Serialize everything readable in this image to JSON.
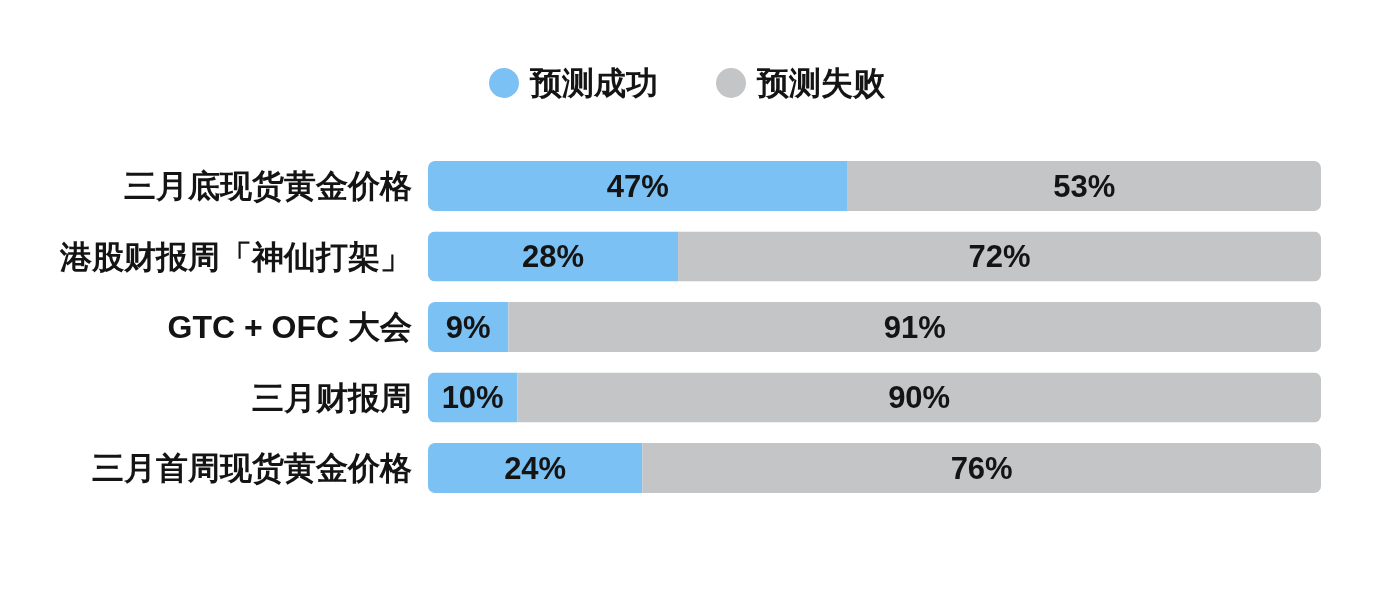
{
  "chart_data": {
    "type": "bar",
    "orientation": "horizontal",
    "stacked": true,
    "categories": [
      "三月底现货黄金价格",
      "港股财报周「神仙打架」",
      "GTC + OFC 大会",
      "三月财报周",
      "三月首周现货黄金价格"
    ],
    "series": [
      {
        "name": "预测成功",
        "color": "#7cc1f3",
        "values": [
          47,
          28,
          9,
          10,
          24
        ],
        "value_labels": [
          "47%",
          "28%",
          "9%",
          "10%",
          "24%"
        ]
      },
      {
        "name": "预测失败",
        "color": "#c4c5c7",
        "values": [
          53,
          72,
          91,
          90,
          76
        ],
        "value_labels": [
          "53%",
          "72%",
          "91%",
          "90%",
          "76%"
        ]
      }
    ],
    "xlim": [
      0,
      100
    ],
    "tick_labels": "y",
    "legend": "top"
  }
}
